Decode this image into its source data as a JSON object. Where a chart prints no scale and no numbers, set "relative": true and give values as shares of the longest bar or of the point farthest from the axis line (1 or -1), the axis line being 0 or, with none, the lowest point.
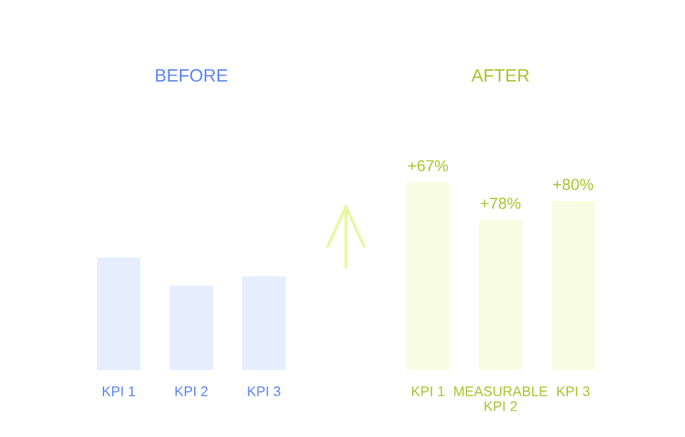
{
  "chart_data": {
    "type": "bar",
    "relative": true,
    "categories": [
      "KPI 1",
      "KPI 2",
      "KPI 3",
      "KPI 1",
      "MEASURABLE\nKPI 2",
      "KPI 3"
    ],
    "series": [
      {
        "color": "#e6eefd",
        "values": [
          0.6,
          0.45,
          0.5,
          null,
          null,
          null
        ]
      },
      {
        "color": "#f8fde2",
        "values": [
          null,
          null,
          null,
          1,
          0.8,
          0.9
        ]
      }
    ],
    "annotations": [
      "BEFORE",
      "AFTER",
      "+67%",
      "+78%",
      "+80%"
    ]
  }
}
